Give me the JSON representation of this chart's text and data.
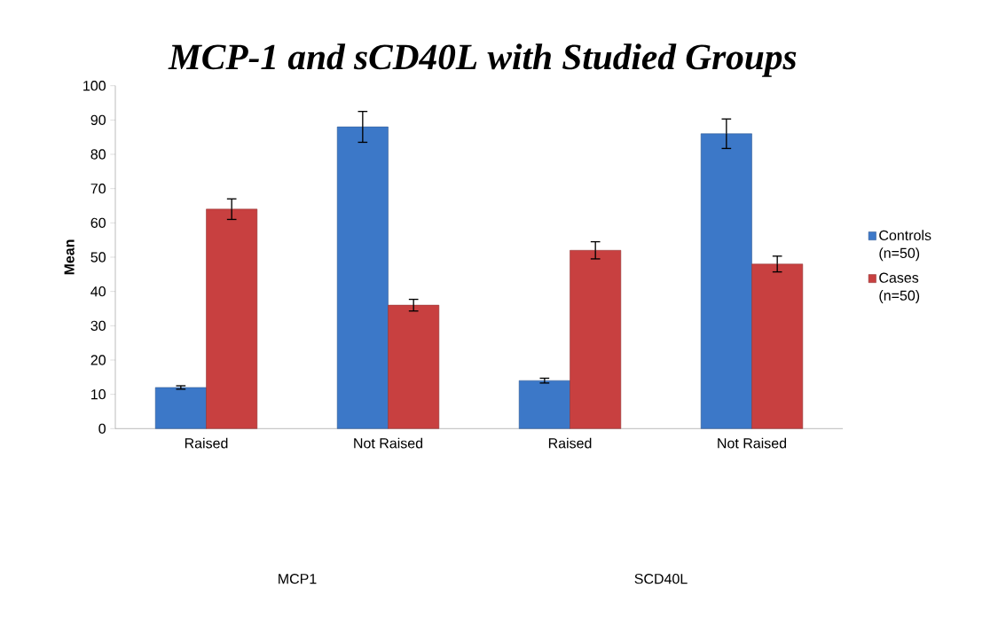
{
  "chart_data": {
    "type": "bar",
    "title": "MCP-1 and sCD40L with Studied Groups",
    "ylabel": "Mean",
    "categories": [
      "Raised",
      "Not Raised",
      "Raised",
      "Not Raised"
    ],
    "series": [
      {
        "name": "Controls (n=50)",
        "color": "#3c78c8",
        "values": [
          12,
          88,
          14,
          86
        ],
        "errors": [
          0.5,
          4.5,
          0.7,
          4.3
        ]
      },
      {
        "name": "Cases (n=50)",
        "color": "#c84040",
        "values": [
          64,
          36,
          52,
          48
        ],
        "errors": [
          3,
          1.7,
          2.5,
          2.3
        ]
      }
    ],
    "ylim": [
      0,
      100
    ],
    "yticks": [
      0,
      10,
      20,
      30,
      40,
      50,
      60,
      70,
      80,
      90,
      100
    ],
    "legend": "right",
    "annotations": [
      "MCP1",
      "SCD40L"
    ]
  }
}
